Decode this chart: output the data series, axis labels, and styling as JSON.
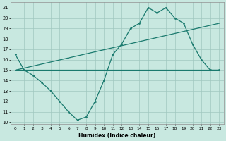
{
  "line1_x": [
    0,
    1,
    2,
    3,
    4,
    5,
    6,
    7,
    8,
    9,
    10,
    11,
    12,
    13,
    14,
    15,
    16,
    17,
    18,
    19,
    20,
    21,
    22,
    23
  ],
  "line1_y": [
    16.5,
    15.0,
    14.5,
    13.8,
    13.0,
    12.0,
    11.0,
    10.2,
    10.5,
    12.0,
    14.0,
    16.5,
    17.5,
    19.0,
    19.5,
    21.0,
    20.5,
    21.0,
    20.0,
    19.5,
    17.5,
    16.0,
    15.0,
    15.0
  ],
  "line2_x": [
    0,
    23
  ],
  "line2_y": [
    15.0,
    19.5
  ],
  "line3_x": [
    0,
    23
  ],
  "line3_y": [
    15.0,
    15.0
  ],
  "color": "#1a7a6e",
  "bg_color": "#c8e8e0",
  "grid_color": "#a0c8c0",
  "xlabel": "Humidex (Indice chaleur)",
  "ylabel_ticks": [
    10,
    11,
    12,
    13,
    14,
    15,
    16,
    17,
    18,
    19,
    20,
    21
  ],
  "xlim": [
    -0.5,
    23.5
  ],
  "ylim": [
    9.8,
    21.5
  ]
}
